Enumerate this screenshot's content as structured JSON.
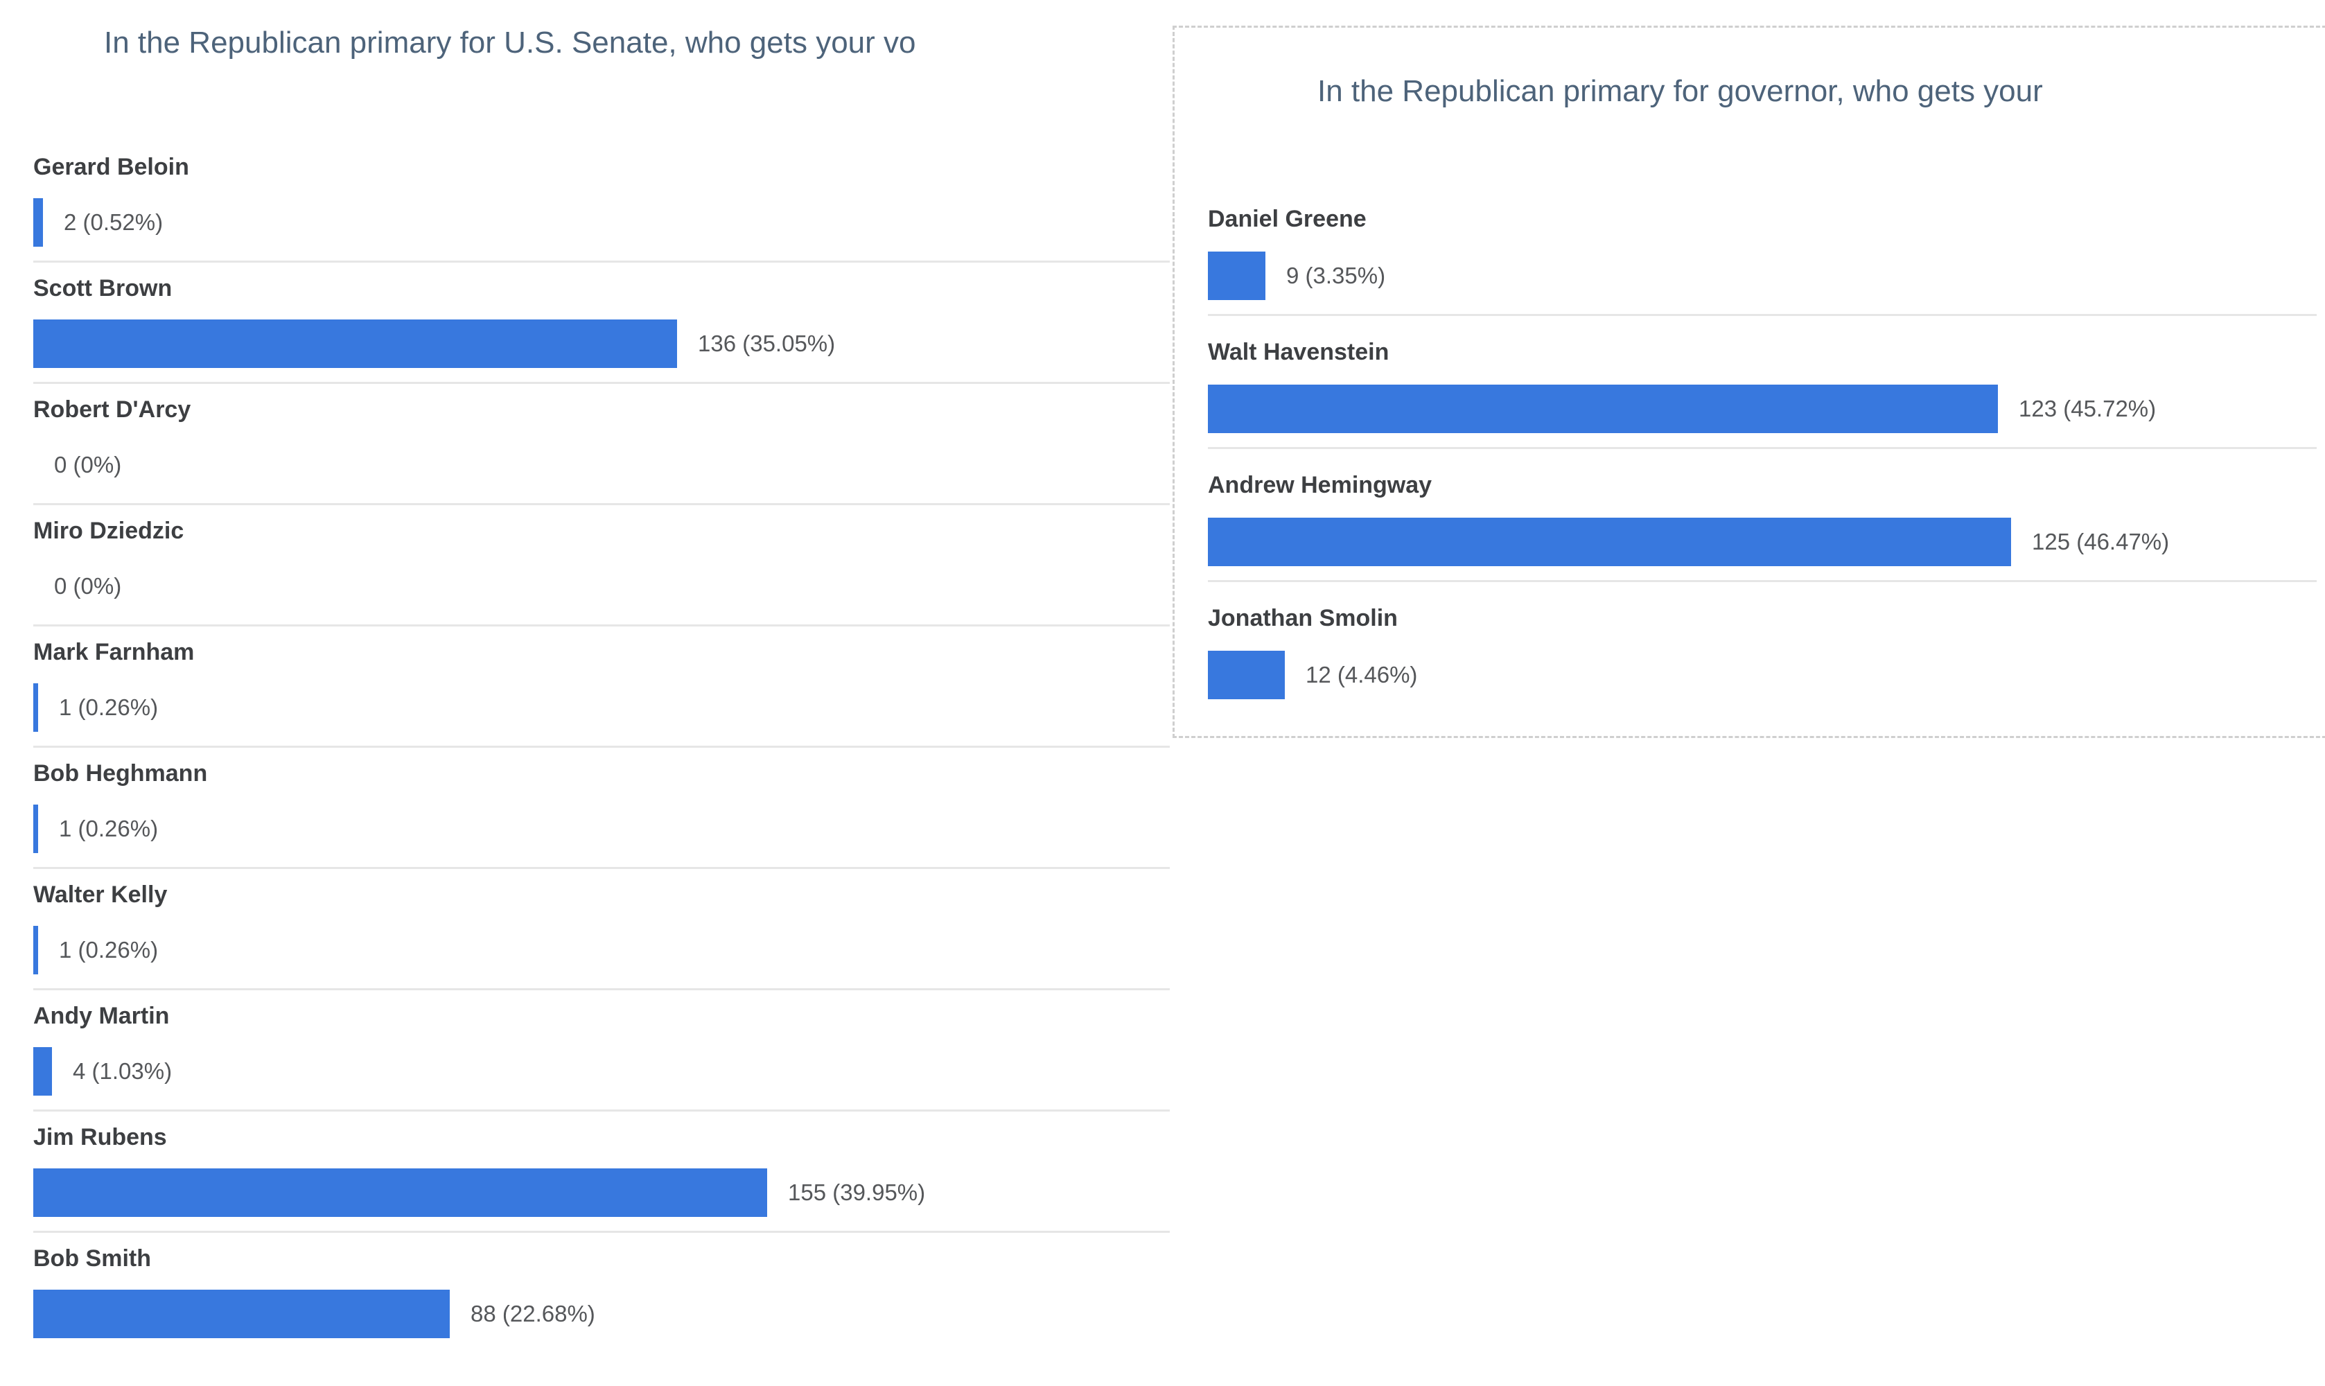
{
  "colors": {
    "bar_blue": "#3878de",
    "title_text": "#4d637a",
    "name_text": "#3d3f42",
    "value_text": "#55575a",
    "separator": "#e6e6e6",
    "panel_dashed_border": "#cfcfcf"
  },
  "chart_data": [
    {
      "type": "bar",
      "orientation": "horizontal",
      "title": "In the Republican primary for U.S. Senate, who gets your vo",
      "categories": [
        "Gerard Beloin",
        "Scott Brown",
        "Robert D'Arcy",
        "Miro Dziedzic",
        "Mark Farnham",
        "Bob Heghmann",
        "Walter Kelly",
        "Andy Martin",
        "Jim Rubens",
        "Bob Smith"
      ],
      "values": [
        2,
        136,
        0,
        0,
        1,
        1,
        1,
        4,
        155,
        88
      ],
      "value_labels": [
        "2 (0.52%)",
        "136 (35.05%)",
        "0 (0%)",
        "0 (0%)",
        "1 (0.26%)",
        "1 (0.26%)",
        "1 (0.26%)",
        "4 (1.03%)",
        "155 (39.95%)",
        "88 (22.68%)"
      ],
      "xlabel": "",
      "ylabel": "",
      "xlim": [
        0,
        155
      ],
      "grid": false,
      "legend": "none"
    },
    {
      "type": "bar",
      "orientation": "horizontal",
      "title": "In the Republican primary for governor, who gets your",
      "categories": [
        "Daniel Greene",
        "Walt Havenstein",
        "Andrew Hemingway",
        "Jonathan Smolin"
      ],
      "values": [
        9,
        123,
        125,
        12
      ],
      "value_labels": [
        "9 (3.35%)",
        "123 (45.72%)",
        "125 (46.47%)",
        "12 (4.46%)"
      ],
      "xlabel": "",
      "ylabel": "",
      "xlim": [
        0,
        125
      ],
      "grid": false,
      "legend": "none"
    }
  ]
}
